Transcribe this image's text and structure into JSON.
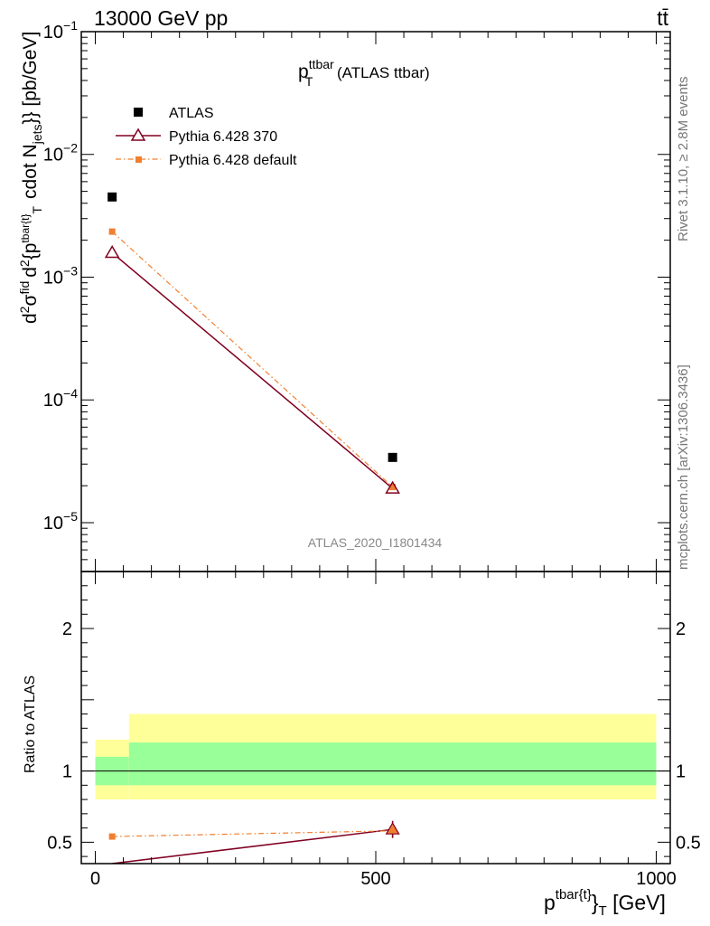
{
  "header": {
    "left": "13000 GeV pp",
    "right": "tt̄"
  },
  "title": {
    "main": "p",
    "sup": "ttbar",
    "sub": "T",
    "rest": " (ATLAS ttbar)"
  },
  "side_labels": {
    "rivet": "Rivet 3.1.10, ≥ 2.8M events",
    "mcplots": "mcplots.cern.ch [arXiv:1306.3436]"
  },
  "watermark": "ATLAS_2020_I1801434",
  "y_label_main": {
    "parts": [
      "d",
      "2",
      "σ",
      "fid",
      "d",
      "2",
      "{p",
      "tbar{t}",
      "T",
      "cdot N",
      "jets",
      "}} [pb/GeV]"
    ]
  },
  "y_label_ratio": "Ratio to ATLAS",
  "x_label": {
    "main": "p",
    "sup": "tbar{t}",
    "mid": "}",
    "sub": "T",
    "rest": " [GeV]"
  },
  "colors": {
    "atlas": "#000000",
    "p370": "#800020",
    "pdef": "#f07f2f",
    "band_inner": "#99ff99",
    "band_outer": "#ffff99"
  },
  "chart_data": [
    {
      "type": "scatter",
      "panel": "main",
      "x_range": [
        -25,
        1025
      ],
      "y_range": [
        4e-06,
        0.1
      ],
      "y_scale": "log",
      "y_ticks": [
        {
          "value": 1e-05,
          "label": "10",
          "exp": "−5"
        },
        {
          "value": 0.0001,
          "label": "10",
          "exp": "−4"
        },
        {
          "value": 0.001,
          "label": "10",
          "exp": "−3"
        },
        {
          "value": 0.01,
          "label": "10",
          "exp": "−2"
        },
        {
          "value": 0.1,
          "label": "10",
          "exp": "−1"
        }
      ],
      "legend_position": "top-left",
      "series": [
        {
          "name": "ATLAS",
          "marker": "square",
          "x": [
            30,
            530
          ],
          "y": [
            0.0045,
            3.4e-05
          ]
        },
        {
          "name": "Pythia 6.428 370",
          "marker": "triangle-open",
          "line": "solid",
          "x": [
            30,
            530
          ],
          "y": [
            0.00158,
            1.9e-05
          ]
        },
        {
          "name": "Pythia 6.428 default",
          "marker": "square-small",
          "line": "dash-dot",
          "x": [
            30,
            530
          ],
          "y": [
            0.00235,
            1.95e-05
          ]
        }
      ]
    },
    {
      "type": "line",
      "panel": "ratio",
      "x_range": [
        -25,
        1025
      ],
      "y_range": [
        0.35,
        2.4
      ],
      "y_ticks": [
        {
          "value": 0.5,
          "label": "0.5"
        },
        {
          "value": 1,
          "label": "1"
        },
        {
          "value": 2,
          "label": "2"
        }
      ],
      "x_ticks": [
        {
          "value": 0,
          "label": "0"
        },
        {
          "value": 500,
          "label": "500"
        },
        {
          "value": 1000,
          "label": "1000"
        }
      ],
      "bands": [
        {
          "x": [
            0,
            60
          ],
          "inner": [
            0.9,
            1.1
          ],
          "outer": [
            0.8,
            1.22
          ]
        },
        {
          "x": [
            60,
            1000
          ],
          "inner": [
            0.9,
            1.2
          ],
          "outer": [
            0.8,
            1.4
          ]
        }
      ],
      "series": [
        {
          "name": "Pythia 6.428 370",
          "x": [
            30,
            530
          ],
          "y": [
            0.35,
            0.59
          ],
          "yerr": [
            0.0,
            0.06
          ]
        },
        {
          "name": "Pythia 6.428 default",
          "x": [
            30,
            530
          ],
          "y": [
            0.54,
            0.58
          ],
          "yerr": [
            0.02,
            0.05
          ]
        }
      ]
    }
  ]
}
